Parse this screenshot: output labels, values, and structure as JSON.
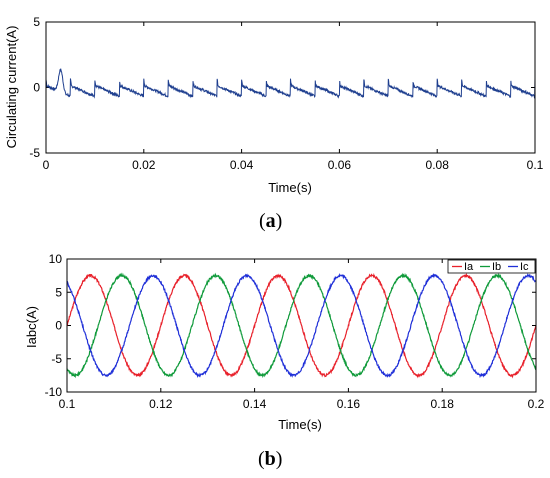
{
  "chart_data": [
    {
      "type": "line",
      "panel_label": "a",
      "xlabel": "Time(s)",
      "ylabel": "Circulating current(A)",
      "xlim": [
        0,
        0.1
      ],
      "ylim": [
        -5,
        5
      ],
      "xticks": [
        "0",
        "0.02",
        "0.04",
        "0.06",
        "0.08",
        "0.1"
      ],
      "yticks": [
        "5",
        "0",
        "-5"
      ],
      "grid": false,
      "legend": null,
      "series": [
        {
          "color": "#1f3f8f",
          "description": "circulating current: sawtooth around -0.3 A, period ~0.005 s, spikes to ~+0.8 A, startup peak ~+1.6 A",
          "offset": -0.3,
          "sawtooth_period": 0.005,
          "sawtooth_amplitude": 0.75,
          "startup_peak": 1.6,
          "startup_time": 0.003
        }
      ]
    },
    {
      "type": "line",
      "panel_label": "b",
      "xlabel": "Time(s)",
      "ylabel": "Iabc(A)",
      "xlim": [
        0.1,
        0.2
      ],
      "ylim": [
        -10,
        10
      ],
      "xticks": [
        "0.1",
        "0.12",
        "0.14",
        "0.16",
        "0.18",
        "0.2"
      ],
      "yticks": [
        "10",
        "5",
        "0",
        "-5",
        "-10"
      ],
      "grid": false,
      "legend": "top-right",
      "series": [
        {
          "name": "Ia",
          "color": "#e8212b",
          "amplitude": 7.5,
          "frequency_hz": 50,
          "phase_deg": 0
        },
        {
          "name": "Ib",
          "color": "#0f9a3a",
          "amplitude": 7.5,
          "frequency_hz": 50,
          "phase_deg": -120
        },
        {
          "name": "Ic",
          "color": "#2030d8",
          "amplitude": 7.5,
          "frequency_hz": 50,
          "phase_deg": 120
        }
      ]
    }
  ]
}
